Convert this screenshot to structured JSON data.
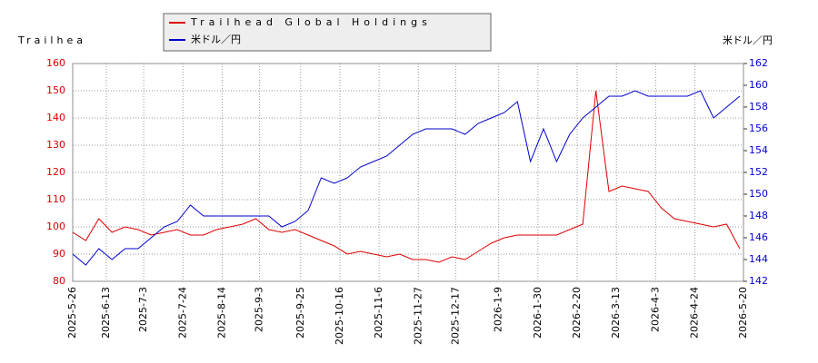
{
  "chart_data": {
    "type": "line",
    "ylabel": "Trailhea",
    "y2label": "米ドル／円",
    "x": [
      "2025-5-26",
      "2025-6-2",
      "2025-6-9",
      "2025-6-16",
      "2025-6-23",
      "2025-6-30",
      "2025-7-7",
      "2025-7-14",
      "2025-7-21",
      "2025-7-28",
      "2025-8-4",
      "2025-8-11",
      "2025-8-18",
      "2025-8-25",
      "2025-9-1",
      "2025-9-8",
      "2025-9-15",
      "2025-9-22",
      "2025-9-29",
      "2025-10-6",
      "2025-10-13",
      "2025-10-20",
      "2025-10-27",
      "2025-11-3",
      "2025-11-10",
      "2025-11-17",
      "2025-11-24",
      "2025-12-1",
      "2025-12-8",
      "2025-12-15",
      "2025-12-22",
      "2025-12-29",
      "2026-1-5",
      "2026-1-12",
      "2026-1-19",
      "2026-1-26",
      "2026-2-2",
      "2026-2-9",
      "2026-2-16",
      "2026-2-23",
      "2026-3-2",
      "2026-3-9",
      "2026-3-16",
      "2026-3-23",
      "2026-3-30",
      "2026-4-6",
      "2026-4-13",
      "2026-4-20",
      "2026-4-27",
      "2026-5-4",
      "2026-5-11",
      "2026-5-18"
    ],
    "series": [
      {
        "name": "Trailhead Global Holdings",
        "color": "#dd0000",
        "axis": "y",
        "values": [
          98,
          95,
          103,
          98,
          100,
          99,
          97,
          98,
          99,
          97,
          97,
          99,
          100,
          101,
          103,
          99,
          98,
          99,
          97,
          95,
          93,
          90,
          91,
          90,
          89,
          90,
          88,
          88,
          87,
          89,
          88,
          91,
          94,
          96,
          97,
          97,
          97,
          97,
          99,
          101,
          150,
          113,
          115,
          114,
          113,
          107,
          103,
          102,
          101,
          100,
          101,
          92
        ]
      },
      {
        "name": "米ドル／円",
        "color": "#0000cc",
        "axis": "y2",
        "values": [
          144.5,
          143.5,
          145,
          144,
          145,
          145,
          146,
          147,
          147.5,
          149,
          148,
          148,
          148,
          148,
          148,
          148,
          147,
          147.5,
          148.5,
          151.5,
          151,
          151.5,
          152.5,
          153,
          153.5,
          154.5,
          155.5,
          156,
          156,
          156,
          155.5,
          156.5,
          157,
          157.5,
          158.5,
          153,
          156,
          153,
          155.5,
          157,
          158,
          159,
          159,
          159.5,
          159,
          159,
          159,
          159,
          159.5,
          157,
          158,
          159
        ]
      }
    ],
    "xticks": [
      "2025-5-26",
      "2025-6-13",
      "2025-7-3",
      "2025-7-24",
      "2025-8-14",
      "2025-9-3",
      "2025-9-25",
      "2025-10-16",
      "2025-11-6",
      "2025-11-27",
      "2025-12-17",
      "2026-1-9",
      "2026-1-30",
      "2026-2-20",
      "2026-3-13",
      "2026-4-3",
      "2026-4-24",
      "2026-5-20"
    ],
    "ylim": [
      80,
      160
    ],
    "yticks": [
      80,
      90,
      100,
      110,
      120,
      130,
      140,
      150,
      160
    ],
    "y2lim": [
      142,
      162
    ],
    "y2ticks": [
      142,
      144,
      146,
      148,
      150,
      152,
      154,
      156,
      158,
      160,
      162
    ],
    "grid": true
  }
}
